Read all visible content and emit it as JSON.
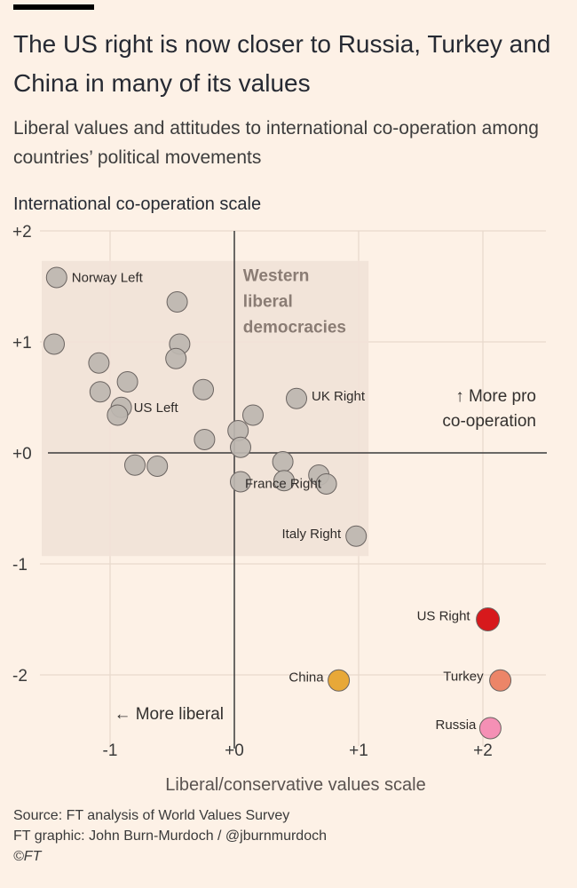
{
  "header": {
    "title": "The US right is now closer to Russia, Turkey and China in many of its values",
    "subtitle": "Liberal values and attitudes to international co-operation among countries’ political movements"
  },
  "footer": {
    "source": "Source: FT analysis of World Values Survey",
    "credit": "FT graphic: John Burn-Murdoch / @jburnmurdoch",
    "copyright": "©FT"
  },
  "colors": {
    "background": "#fdf1e6",
    "region": "#f1e3d8",
    "grey_point": "#bdb6b0",
    "us_right": "#d7191c",
    "china": "#e8a838",
    "turkey": "#ec8568",
    "russia": "#f590b5"
  },
  "chart_data": {
    "type": "scatter",
    "title": "The US right is now closer to Russia, Turkey and China in many of its values",
    "xlabel": "Liberal/conservative values scale",
    "ylabel": "International co-operation scale",
    "xlim": [
      -1.55,
      2.75
    ],
    "ylim": [
      -2.58,
      2.05
    ],
    "x_ticks": [
      -1,
      0,
      1,
      2
    ],
    "x_tick_labels": [
      "-1",
      "+0",
      "+1",
      "+2"
    ],
    "y_ticks": [
      2,
      1,
      0,
      -1,
      -2
    ],
    "y_tick_labels": [
      "+2",
      "+1",
      "+0",
      "-1",
      "-2"
    ],
    "grid": true,
    "region": {
      "label_lines": [
        "Western",
        "liberal",
        "democracies"
      ],
      "x_range": [
        -1.55,
        1.08
      ],
      "y_range": [
        -0.93,
        1.73
      ]
    },
    "annotations": [
      {
        "id": "up",
        "text_lines": [
          "↑ More pro",
          "co-operation"
        ]
      },
      {
        "id": "left",
        "text_lines": [
          "← More liberal"
        ]
      }
    ],
    "points": [
      {
        "x": -1.43,
        "y": 1.58,
        "label": "Norway Left",
        "group": "western"
      },
      {
        "x": -1.45,
        "y": 0.98,
        "label": "",
        "group": "western"
      },
      {
        "x": -0.46,
        "y": 1.36,
        "label": "",
        "group": "western"
      },
      {
        "x": -0.44,
        "y": 0.98,
        "label": "",
        "group": "western"
      },
      {
        "x": -0.47,
        "y": 0.85,
        "label": "",
        "group": "western"
      },
      {
        "x": -1.09,
        "y": 0.81,
        "label": "",
        "group": "western"
      },
      {
        "x": -0.86,
        "y": 0.64,
        "label": "",
        "group": "western"
      },
      {
        "x": -1.08,
        "y": 0.55,
        "label": "",
        "group": "western"
      },
      {
        "x": -0.91,
        "y": 0.41,
        "label": "US Left",
        "group": "western"
      },
      {
        "x": -0.94,
        "y": 0.34,
        "label": "",
        "group": "western"
      },
      {
        "x": -0.25,
        "y": 0.57,
        "label": "",
        "group": "western"
      },
      {
        "x": -0.24,
        "y": 0.12,
        "label": "",
        "group": "western"
      },
      {
        "x": 0.03,
        "y": 0.2,
        "label": "",
        "group": "western"
      },
      {
        "x": 0.15,
        "y": 0.34,
        "label": "",
        "group": "western"
      },
      {
        "x": 0.05,
        "y": 0.05,
        "label": "",
        "group": "western"
      },
      {
        "x": 0.5,
        "y": 0.49,
        "label": "UK Right",
        "group": "western"
      },
      {
        "x": -0.8,
        "y": -0.11,
        "label": "",
        "group": "western"
      },
      {
        "x": -0.62,
        "y": -0.12,
        "label": "",
        "group": "western"
      },
      {
        "x": 0.05,
        "y": -0.26,
        "label": "France Right",
        "group": "western"
      },
      {
        "x": 0.39,
        "y": -0.08,
        "label": "",
        "group": "western"
      },
      {
        "x": 0.4,
        "y": -0.25,
        "label": "",
        "group": "western"
      },
      {
        "x": 0.68,
        "y": -0.2,
        "label": "",
        "group": "western"
      },
      {
        "x": 0.74,
        "y": -0.28,
        "label": "",
        "group": "western"
      },
      {
        "x": 0.98,
        "y": -0.75,
        "label": "Italy Right",
        "group": "western"
      },
      {
        "x": 2.04,
        "y": -1.5,
        "label": "US Right",
        "group": "us_right"
      },
      {
        "x": 0.84,
        "y": -2.05,
        "label": "China",
        "group": "china"
      },
      {
        "x": 2.14,
        "y": -2.05,
        "label": "Turkey",
        "group": "turkey"
      },
      {
        "x": 2.06,
        "y": -2.48,
        "label": "Russia",
        "group": "russia"
      }
    ]
  }
}
